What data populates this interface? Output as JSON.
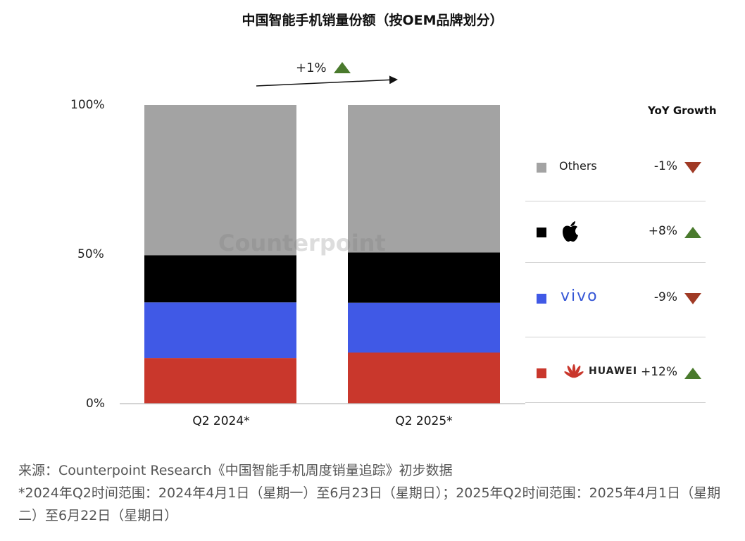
{
  "title": "中国智能手机销量份额（按OEM品牌划分）",
  "yoy_header": "YoY Growth",
  "overall_change": "+1%",
  "overall_direction": "up",
  "watermark": "Counterpoint",
  "y_axis_ticks": [
    "100%",
    "50%",
    "0%"
  ],
  "chart_data": {
    "type": "bar",
    "stacked": true,
    "categories": [
      "Q2 2024*",
      "Q2 2025*"
    ],
    "ylim": [
      0,
      100
    ],
    "series": [
      {
        "name": "HUAWEI",
        "values": [
          15.3,
          17.1
        ],
        "color": "#c9372c"
      },
      {
        "name": "vivo",
        "values": [
          18.6,
          16.7
        ],
        "color": "#4059e6"
      },
      {
        "name": "Apple",
        "values": [
          15.8,
          16.8
        ],
        "color": "#000000"
      },
      {
        "name": "Others",
        "values": [
          50.3,
          49.4
        ],
        "color": "#a3a3a3"
      }
    ]
  },
  "legend": [
    {
      "key": "others",
      "label": "Others",
      "growth": "-1%",
      "direction": "down",
      "color": "#a3a3a3"
    },
    {
      "key": "apple",
      "label": "",
      "growth": "+8%",
      "direction": "up",
      "color": "#000000"
    },
    {
      "key": "vivo",
      "label": "vivo",
      "growth": "-9%",
      "direction": "down",
      "color": "#4059e6"
    },
    {
      "key": "huawei",
      "label": "HUAWEI",
      "growth": "+12%",
      "direction": "up",
      "color": "#c9372c"
    }
  ],
  "source": {
    "line1": "来源：Counterpoint Research《中国智能手机周度销量追踪》初步数据",
    "line2": "*2024年Q2时间范围：2024年4月1日（星期一）至6月23日（星期日）；2025年Q2时间范围：2025年4月1日（星期二）至6月22日（星期日）"
  }
}
